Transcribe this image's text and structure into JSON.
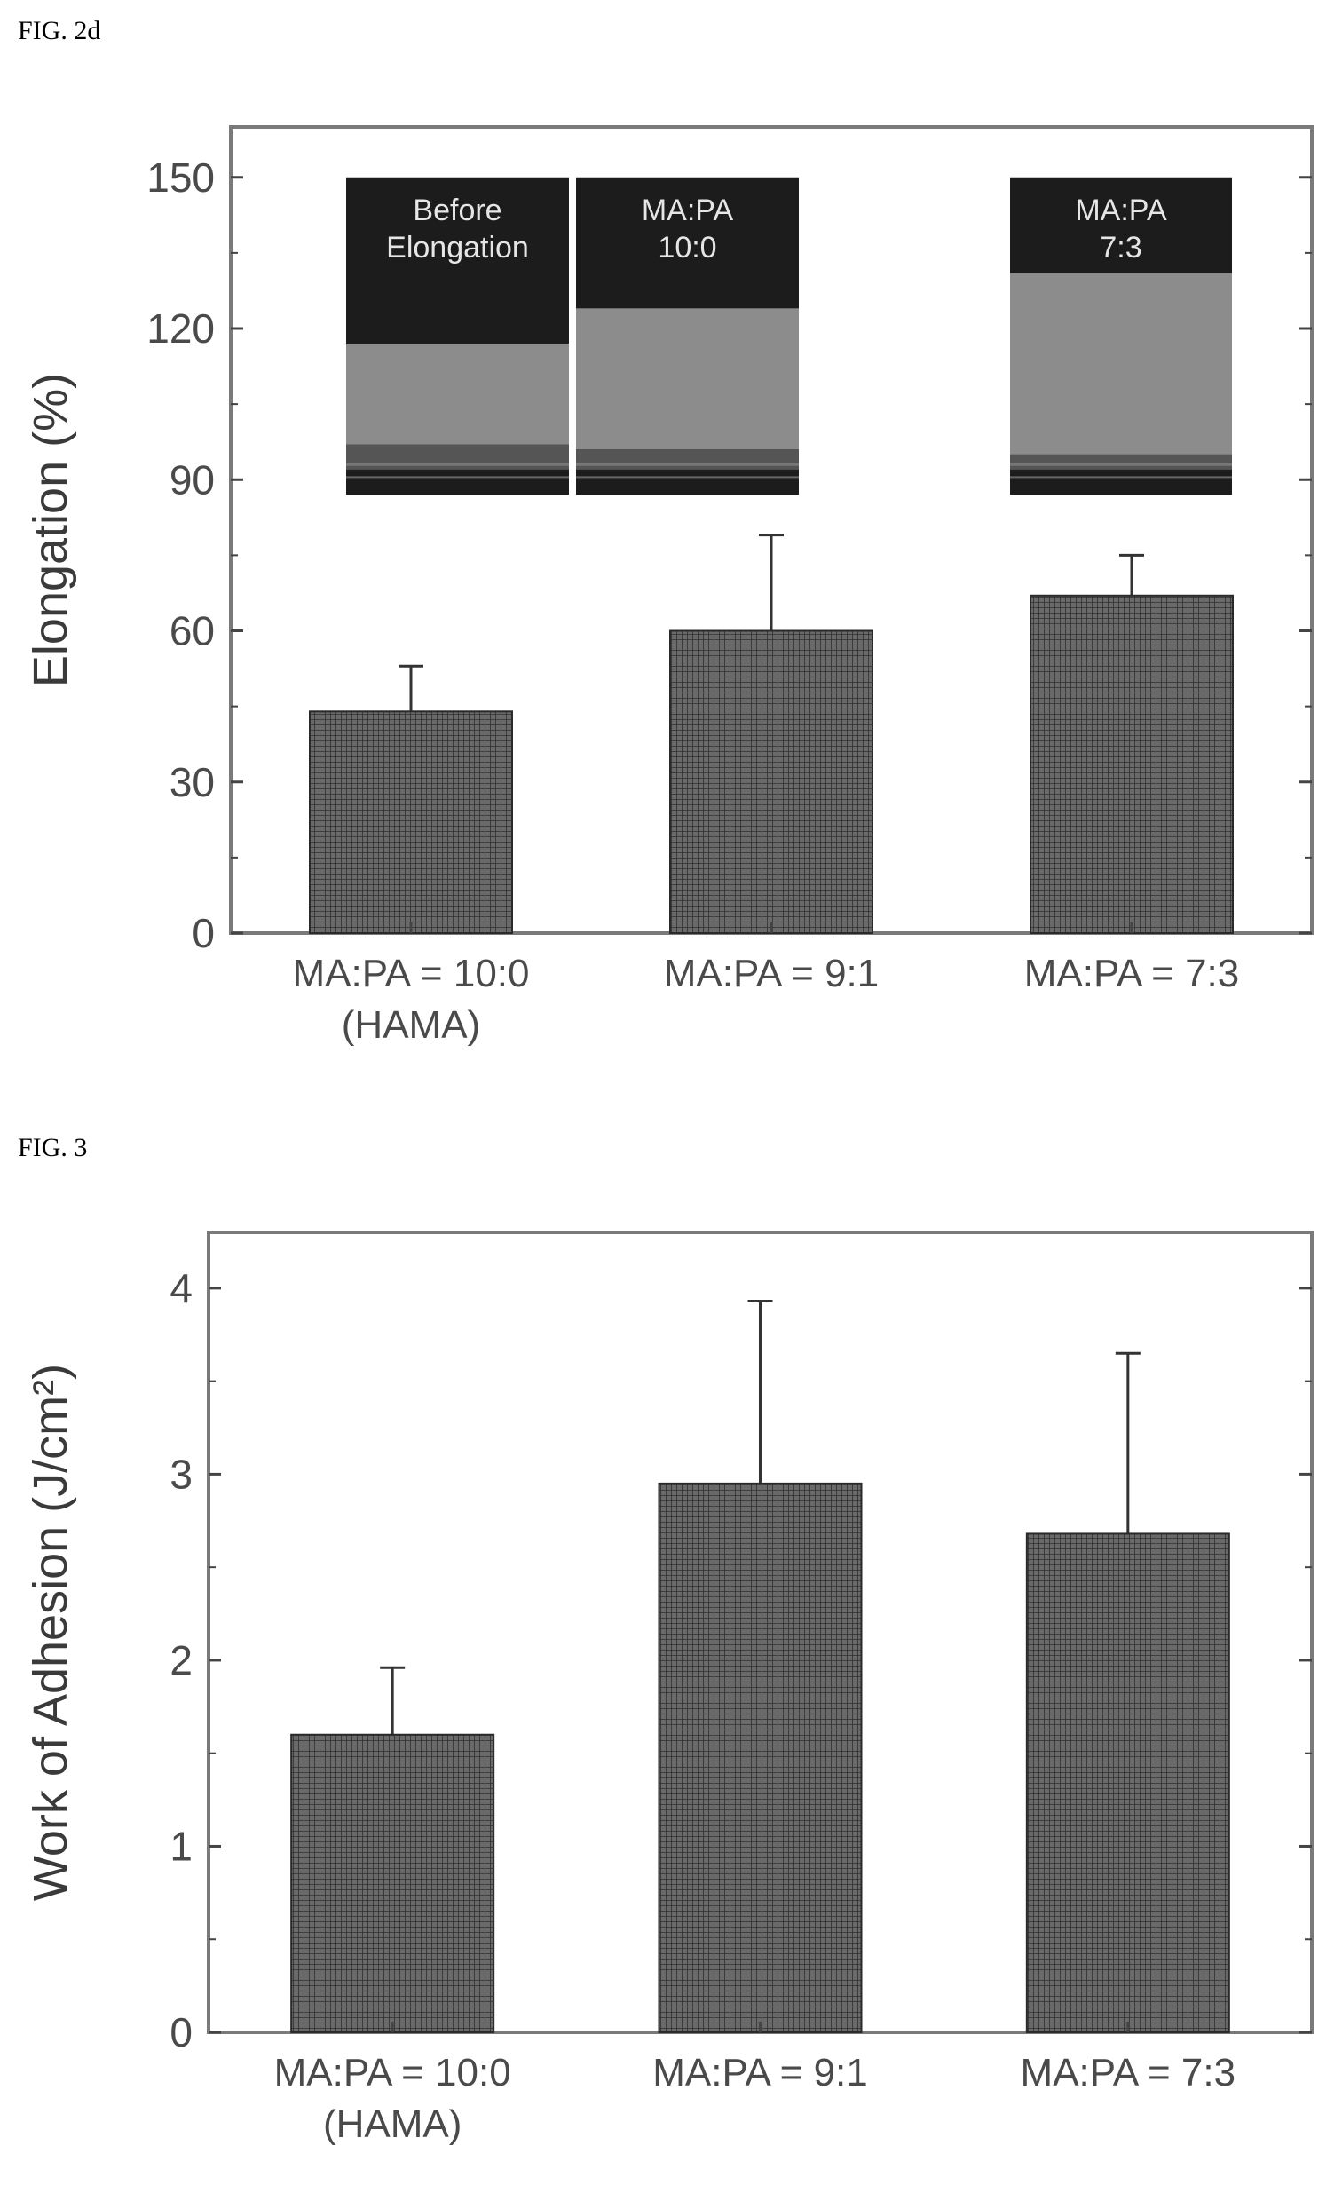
{
  "figures": {
    "fig2d_label": "FIG. 2d",
    "fig3_label": "FIG. 3"
  },
  "colors": {
    "bar_fill": "#5a5a5a",
    "axis": "#444444",
    "text": "#4a4a4a"
  },
  "chart_data": [
    {
      "type": "bar",
      "ylabel": "Elongation (%)",
      "xlabel": "",
      "ylim": [
        0,
        160
      ],
      "yticks": [
        "0",
        "30",
        "60",
        "90",
        "120",
        "150"
      ],
      "ytick_values": [
        0,
        30,
        60,
        90,
        120,
        150
      ],
      "categories": [
        [
          "MA:PA = 10:0",
          "(HAMA)"
        ],
        [
          "MA:PA = 9:1"
        ],
        [
          "MA:PA = 7:3"
        ]
      ],
      "values": [
        44,
        60,
        67
      ],
      "errors": [
        9,
        19,
        8
      ],
      "insets": [
        {
          "lines": [
            "Before",
            "Elongation"
          ],
          "band_top": 117,
          "band_bottom": 97
        },
        {
          "lines": [
            "MA:PA",
            "10:0"
          ],
          "band_top": 124,
          "band_bottom": 96
        },
        {
          "lines": [
            "MA:PA",
            "7:3"
          ],
          "band_top": 131,
          "band_bottom": 95
        }
      ]
    },
    {
      "type": "bar",
      "ylabel": "Work of Adhesion (J/cm²)",
      "xlabel": "",
      "ylim": [
        0,
        4.3
      ],
      "yticks": [
        "0",
        "1",
        "2",
        "3",
        "4"
      ],
      "ytick_values": [
        0,
        1,
        2,
        3,
        4
      ],
      "categories": [
        [
          "MA:PA = 10:0",
          "(HAMA)"
        ],
        [
          "MA:PA = 9:1"
        ],
        [
          "MA:PA = 7:3"
        ]
      ],
      "values": [
        1.6,
        2.95,
        2.68
      ],
      "errors": [
        0.36,
        0.98,
        0.97
      ]
    }
  ]
}
